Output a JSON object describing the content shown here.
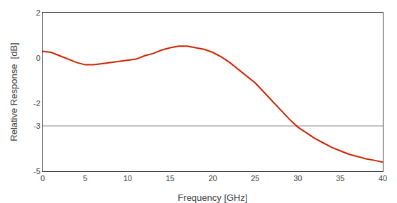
{
  "chart_data": {
    "type": "line",
    "x_label": "Frequency [GHz]",
    "y_label": "Relative Response  [dB]",
    "x": [
      0,
      1,
      2,
      3,
      4,
      5,
      6,
      7,
      8,
      9,
      10,
      11,
      12,
      13,
      14,
      15,
      16,
      17,
      18,
      19,
      20,
      21,
      22,
      23,
      24,
      25,
      26,
      27,
      28,
      29,
      30,
      31,
      32,
      33,
      34,
      35,
      36,
      37,
      38,
      39,
      40
    ],
    "values": [
      0.3,
      0.25,
      0.1,
      -0.05,
      -0.2,
      -0.3,
      -0.3,
      -0.25,
      -0.2,
      -0.15,
      -0.1,
      -0.05,
      0.1,
      0.2,
      0.35,
      0.45,
      0.52,
      0.52,
      0.45,
      0.38,
      0.25,
      0.05,
      -0.2,
      -0.5,
      -0.8,
      -1.1,
      -1.5,
      -1.9,
      -2.3,
      -2.7,
      -3.05,
      -3.3,
      -3.55,
      -3.75,
      -3.95,
      -4.1,
      -4.25,
      -4.35,
      -4.45,
      -4.52,
      -4.6
    ],
    "color": "#cc2200",
    "reference_line": {
      "value": -3,
      "color": "#888888"
    },
    "xlim": [
      0,
      40
    ],
    "ylim": [
      -5,
      2
    ],
    "xticks": [
      0,
      5,
      10,
      15,
      20,
      25,
      30,
      35,
      40
    ],
    "yticks": [
      2,
      0,
      -2,
      -3,
      -5
    ],
    "grid": false
  }
}
